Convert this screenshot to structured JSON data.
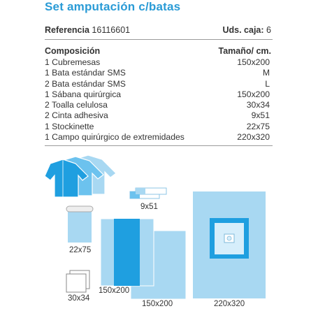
{
  "title": "Set amputación c/batas",
  "reference": {
    "label": "Referencia",
    "value": "16116601"
  },
  "units_box": {
    "label": "Uds. caja:",
    "value": "6"
  },
  "composition": {
    "header_label": "Composición",
    "header_size": "Tamaño/ cm.",
    "items": [
      {
        "text": "1 Cubremesas",
        "size": "150x200"
      },
      {
        "text": "1 Bata estándar SMS",
        "size": "M"
      },
      {
        "text": "2 Bata estándar SMS",
        "size": "L"
      },
      {
        "text": "1 Sábana quirúrgica",
        "size": "150x200"
      },
      {
        "text": "2 Toalla celulosa",
        "size": "30x34"
      },
      {
        "text": "2 Cinta adhesiva",
        "size": "9x51"
      },
      {
        "text": "1 Stockinette",
        "size": "22x75"
      },
      {
        "text": "1 Campo quirúrgico de extremidades",
        "size": "220x320"
      }
    ]
  },
  "illustrations": {
    "tape_label": "9x51",
    "stockinette_label": "22x75",
    "sheet_label": "150x200",
    "cover_label": "150x200",
    "extremity_label": "220x320",
    "towel_label": "30x34"
  },
  "colors": {
    "title": "#2a9bd6",
    "light_blue": "#a8d8f2",
    "mid_blue": "#4fb4e8",
    "strong_blue": "#1f9fe0",
    "outline": "#8cc6e6"
  }
}
